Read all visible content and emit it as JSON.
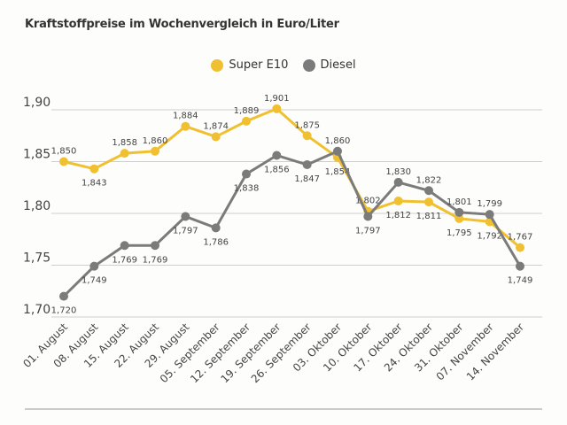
{
  "title": "Kraftstoffpreise im Wochenvergleich in Euro/Liter",
  "chart_data": {
    "type": "line",
    "title": "Kraftstoffpreise im Wochenvergleich in Euro/Liter",
    "categories": [
      "01. August",
      "08. August",
      "15. August",
      "22. August",
      "29. August",
      "05. September",
      "12. September",
      "19. September",
      "26. September",
      "03. Oktober",
      "10. Oktober",
      "17. Oktober",
      "24. Oktober",
      "31. Oktober",
      "07. November",
      "14. November"
    ],
    "series": [
      {
        "name": "Super E10",
        "color": "#f0c030",
        "values": [
          1.85,
          1.843,
          1.858,
          1.86,
          1.884,
          1.874,
          1.889,
          1.901,
          1.875,
          1.854,
          1.802,
          1.812,
          1.811,
          1.795,
          1.792,
          1.767
        ]
      },
      {
        "name": "Diesel",
        "color": "#7b7b7b",
        "values": [
          1.72,
          1.749,
          1.769,
          1.769,
          1.797,
          1.786,
          1.838,
          1.856,
          1.847,
          1.86,
          1.797,
          1.83,
          1.822,
          1.801,
          1.799,
          1.749
        ]
      }
    ],
    "yticks": [
      "1,70",
      "1,75",
      "1,80",
      "1,85",
      "1,90"
    ],
    "ylim": [
      1.7,
      1.9
    ],
    "grid": true,
    "legend": "top-center",
    "decimal_separator": ","
  }
}
